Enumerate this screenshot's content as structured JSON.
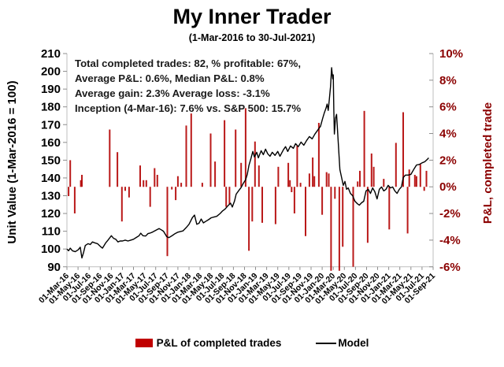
{
  "chart_data": {
    "type": "combo_bar_line",
    "title": "My Inner Trader",
    "subtitle": "(1-Mar-2016 to 30-Jul-2021)",
    "x_axis": {
      "unit": "date, months from 1-Mar-2016",
      "tick_labels": [
        "01-Mar-16",
        "01-May-16",
        "01-Jul-16",
        "01-Sep-16",
        "01-Nov-16",
        "01-Jan-17",
        "01-Mar-17",
        "01-May-17",
        "01-Jul-17",
        "01-Sep-17",
        "01-Nov-17",
        "01-Jan-18",
        "01-Mar-18",
        "01-May-18",
        "01-Jul-18",
        "01-Sep-18",
        "01-Nov-18",
        "01-Jan-19",
        "01-Mar-19",
        "01-May-19",
        "01-Jul-19",
        "01-Sep-19",
        "01-Nov-19",
        "01-Jan-20",
        "01-Mar-20",
        "01-May-20",
        "01-Jul-20",
        "01-Sep-20",
        "01-Nov-20",
        "01-Jan-21",
        "01-Mar-21",
        "01-May-21",
        "01-Jul-21",
        "01-Sep-21"
      ],
      "months_span": 66
    },
    "y_left": {
      "title": "Unit Value (1-Mar-2016 = 100)",
      "ticks": [
        210,
        200,
        190,
        180,
        170,
        160,
        150,
        140,
        130,
        120,
        110,
        100,
        90
      ],
      "range": [
        90,
        210
      ]
    },
    "y_right": {
      "title": "P&L, completed trade",
      "tick_labels": [
        "10%",
        "8%",
        "6%",
        "4%",
        "2%",
        "0%",
        "-2%",
        "-4%",
        "-6%"
      ],
      "tick_values": [
        10,
        8,
        6,
        4,
        2,
        0,
        -2,
        -4,
        -6
      ],
      "range": [
        -6,
        10
      ]
    },
    "series": [
      {
        "name": "P&L of completed trades",
        "type": "bar",
        "axis": "right",
        "color": "#B30000"
      },
      {
        "name": "Model",
        "type": "line",
        "axis": "left",
        "color": "#000000"
      }
    ],
    "bars_month_pnl": [
      [
        0.3,
        -0.7
      ],
      [
        0.6,
        2.0
      ],
      [
        1.4,
        -2.0
      ],
      [
        2.5,
        0.5
      ],
      [
        2.7,
        0.9
      ],
      [
        7.7,
        4.3
      ],
      [
        9.1,
        2.6
      ],
      [
        9.9,
        -2.6
      ],
      [
        10.5,
        -0.3
      ],
      [
        11.2,
        -0.8
      ],
      [
        13.2,
        1.6
      ],
      [
        13.8,
        0.5
      ],
      [
        14.3,
        0.5
      ],
      [
        15.0,
        -1.5
      ],
      [
        15.8,
        1.4
      ],
      [
        16.3,
        0.9
      ],
      [
        18.1,
        -5.2
      ],
      [
        18.9,
        -0.2
      ],
      [
        19.6,
        -1.0
      ],
      [
        20.0,
        0.8
      ],
      [
        20.6,
        0.3
      ],
      [
        21.5,
        4.6
      ],
      [
        22.4,
        5.5
      ],
      [
        24.4,
        0.3
      ],
      [
        25.9,
        4.0
      ],
      [
        26.7,
        1.9
      ],
      [
        28.4,
        5.0
      ],
      [
        28.7,
        -1.5
      ],
      [
        29.3,
        -1.3
      ],
      [
        30.4,
        4.3
      ],
      [
        31.4,
        1.8
      ],
      [
        32.2,
        5.9
      ],
      [
        32.8,
        -4.8
      ],
      [
        33.4,
        -2.6
      ],
      [
        33.9,
        3.4
      ],
      [
        34.6,
        1.6
      ],
      [
        35.2,
        -2.7
      ],
      [
        37.6,
        -2.8
      ],
      [
        38.1,
        1.5
      ],
      [
        39.9,
        1.8
      ],
      [
        40.2,
        0.5
      ],
      [
        40.5,
        -0.4
      ],
      [
        41.0,
        -2.0
      ],
      [
        41.5,
        3.1
      ],
      [
        42.1,
        0.3
      ],
      [
        43.0,
        -3.7
      ],
      [
        43.7,
        1.0
      ],
      [
        44.3,
        2.2
      ],
      [
        44.6,
        0.8
      ],
      [
        45.4,
        4.8
      ],
      [
        46.0,
        -2.1
      ],
      [
        46.8,
        1.1
      ],
      [
        47.2,
        1.0
      ],
      [
        47.6,
        -6.3
      ],
      [
        48.3,
        -0.9
      ],
      [
        49.1,
        -6.3
      ],
      [
        49.7,
        -4.5
      ],
      [
        51.6,
        -6.0
      ],
      [
        52.4,
        0.4
      ],
      [
        52.8,
        1.2
      ],
      [
        53.6,
        5.7
      ],
      [
        54.2,
        -4.2
      ],
      [
        54.9,
        2.5
      ],
      [
        55.3,
        1.5
      ],
      [
        57.1,
        0.6
      ],
      [
        58.1,
        -3.2
      ],
      [
        59.3,
        3.3
      ],
      [
        60.6,
        5.6
      ],
      [
        61.4,
        -3.5
      ],
      [
        61.7,
        1.3
      ],
      [
        62.7,
        0.9
      ],
      [
        63.0,
        0.8
      ],
      [
        63.7,
        1.7
      ],
      [
        64.4,
        -0.3
      ],
      [
        64.8,
        1.2
      ]
    ],
    "model_line_month_value": [
      [
        0,
        100
      ],
      [
        0.3,
        99
      ],
      [
        0.6,
        100.5
      ],
      [
        1,
        99
      ],
      [
        1.5,
        98.5
      ],
      [
        2,
        99.5
      ],
      [
        2.4,
        101
      ],
      [
        2.7,
        95
      ],
      [
        3,
        98
      ],
      [
        3.3,
        102
      ],
      [
        3.8,
        103
      ],
      [
        4.2,
        102.5
      ],
      [
        4.6,
        104
      ],
      [
        5,
        103.5
      ],
      [
        5.5,
        103
      ],
      [
        6,
        101.5
      ],
      [
        6.4,
        100.5
      ],
      [
        6.7,
        102
      ],
      [
        7,
        103.5
      ],
      [
        7.4,
        105
      ],
      [
        8,
        107.5
      ],
      [
        8.4,
        106
      ],
      [
        8.8,
        105.5
      ],
      [
        9.2,
        104
      ],
      [
        9.6,
        104.5
      ],
      [
        10,
        104.5
      ],
      [
        10.5,
        105
      ],
      [
        11,
        104.5
      ],
      [
        11.5,
        105
      ],
      [
        12,
        105.5
      ],
      [
        12.5,
        106.5
      ],
      [
        13,
        107.5
      ],
      [
        13.3,
        108.9
      ],
      [
        13.7,
        107.5
      ],
      [
        14.2,
        107.3
      ],
      [
        14.6,
        108.7
      ],
      [
        15,
        109
      ],
      [
        15.4,
        109.5
      ],
      [
        15.9,
        110.3
      ],
      [
        16.3,
        111
      ],
      [
        16.6,
        111.5
      ],
      [
        17,
        110.8
      ],
      [
        17.4,
        110
      ],
      [
        18,
        106.9
      ],
      [
        18.4,
        106.4
      ],
      [
        19,
        107.6
      ],
      [
        19.5,
        108.7
      ],
      [
        20,
        109.5
      ],
      [
        20.9,
        110.2
      ],
      [
        21.5,
        112.1
      ],
      [
        22,
        113.9
      ],
      [
        22.6,
        117.6
      ],
      [
        23,
        119.1
      ],
      [
        23.4,
        113.9
      ],
      [
        23.8,
        114.5
      ],
      [
        24.2,
        116.9
      ],
      [
        24.6,
        114.7
      ],
      [
        25,
        115.5
      ],
      [
        25.5,
        116.5
      ],
      [
        26,
        117.6
      ],
      [
        26.5,
        118
      ],
      [
        27,
        118.4
      ],
      [
        27.6,
        120
      ],
      [
        28,
        121.3
      ],
      [
        28.5,
        122.5
      ],
      [
        29,
        124.3
      ],
      [
        29.5,
        125.8
      ],
      [
        29.8,
        123.6
      ],
      [
        30.2,
        127
      ],
      [
        30.5,
        130.9
      ],
      [
        31,
        133
      ],
      [
        31.4,
        134.6
      ],
      [
        31.8,
        137
      ],
      [
        32.2,
        139
      ],
      [
        32.5,
        142
      ],
      [
        32.8,
        147
      ],
      [
        33.2,
        151.3
      ],
      [
        33.5,
        154.9
      ],
      [
        33.8,
        151.8
      ],
      [
        34.2,
        154.4
      ],
      [
        34.5,
        151.3
      ],
      [
        35,
        155.3
      ],
      [
        35.4,
        153.1
      ],
      [
        35.8,
        156.2
      ],
      [
        36.2,
        153.6
      ],
      [
        36.6,
        152.2
      ],
      [
        37,
        154.4
      ],
      [
        37.5,
        152.7
      ],
      [
        38,
        154.9
      ],
      [
        38.4,
        152.2
      ],
      [
        39,
        155.8
      ],
      [
        39.4,
        157.6
      ],
      [
        39.8,
        154.9
      ],
      [
        40.3,
        158
      ],
      [
        40.8,
        156.7
      ],
      [
        41.2,
        159.3
      ],
      [
        41.7,
        157.6
      ],
      [
        42.2,
        160.2
      ],
      [
        42.7,
        158.4
      ],
      [
        43.2,
        161.1
      ],
      [
        43.7,
        163.3
      ],
      [
        44.2,
        162
      ],
      [
        44.7,
        164.7
      ],
      [
        45.2,
        166.9
      ],
      [
        45.7,
        169.1
      ],
      [
        46.1,
        173.6
      ],
      [
        46.4,
        176.7
      ],
      [
        46.7,
        179.3
      ],
      [
        46.9,
        181.6
      ],
      [
        47.1,
        178
      ],
      [
        47.3,
        184.7
      ],
      [
        47.5,
        191.3
      ],
      [
        47.7,
        202
      ],
      [
        47.9,
        195.8
      ],
      [
        48,
        198
      ],
      [
        48.1,
        178
      ],
      [
        48.2,
        164.7
      ],
      [
        48.4,
        173.6
      ],
      [
        48.6,
        175.8
      ],
      [
        48.9,
        160.2
      ],
      [
        49.2,
        144.7
      ],
      [
        49.5,
        140.2
      ],
      [
        49.8,
        135.8
      ],
      [
        50.1,
        138
      ],
      [
        50.4,
        133.6
      ],
      [
        50.7,
        134.4
      ],
      [
        51.1,
        131.3
      ],
      [
        51.5,
        130
      ],
      [
        51.9,
        126.9
      ],
      [
        52.3,
        125.6
      ],
      [
        52.7,
        124.7
      ],
      [
        53.1,
        126
      ],
      [
        53.5,
        126.9
      ],
      [
        53.9,
        132.7
      ],
      [
        54.3,
        133.6
      ],
      [
        54.7,
        131.3
      ],
      [
        55.1,
        134.4
      ],
      [
        55.5,
        132.2
      ],
      [
        55.9,
        128.2
      ],
      [
        56.3,
        133.6
      ],
      [
        56.7,
        134.9
      ],
      [
        57.1,
        132.7
      ],
      [
        57.5,
        133.6
      ],
      [
        57.9,
        135.8
      ],
      [
        58.3,
        134.4
      ],
      [
        58.7,
        134.9
      ],
      [
        59.1,
        132.7
      ],
      [
        59.5,
        131.3
      ],
      [
        59.9,
        133.6
      ],
      [
        60.3,
        135
      ],
      [
        60.6,
        140.2
      ],
      [
        61,
        141.6
      ],
      [
        61.5,
        141.6
      ],
      [
        62,
        142
      ],
      [
        62.5,
        144.7
      ],
      [
        63,
        147.3
      ],
      [
        63.5,
        147.6
      ],
      [
        64,
        148.5
      ],
      [
        64.5,
        149.1
      ],
      [
        65,
        150.6
      ],
      [
        65.2,
        151.3
      ]
    ],
    "grid": "off",
    "legend_position": "bottom-center",
    "colors": {
      "bar": "#B30000",
      "line": "#000000",
      "right_axis_text": "#8B0000",
      "axis_line": "#BFBFBF",
      "tick": "#8C8C8C"
    }
  },
  "annotation": {
    "lines": [
      "Total completed trades: 82, % profitable: 67%,",
      "Average P&L: 0.6%, Median P&L: 0.8%",
      "Average gain: 2.3% Average loss: -3.1%",
      "Inception (4-Mar-16): 7.6% vs. S&P 500: 15.7%"
    ]
  },
  "legend": {
    "items": [
      {
        "label": "P&L of completed trades",
        "swatch_color": "#C00000",
        "type": "bar"
      },
      {
        "label": "Model",
        "swatch_color": "#000000",
        "type": "line"
      }
    ]
  }
}
